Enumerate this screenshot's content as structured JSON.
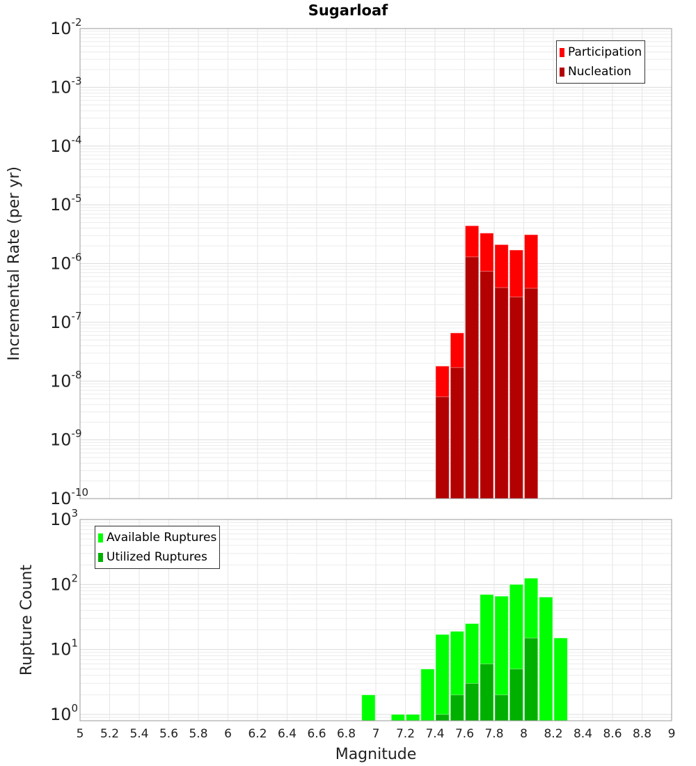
{
  "chart_data": [
    {
      "type": "bar",
      "title": "Sugarloaf",
      "xlabel": "Magnitude",
      "ylabel": "Incremental Rate (per yr)",
      "yscale": "log",
      "ylim": [
        1e-10,
        0.01
      ],
      "xlim": [
        5,
        9
      ],
      "grid": true,
      "legend_position": "top-right",
      "bin_width": 0.1,
      "x": [
        7.45,
        7.55,
        7.65,
        7.75,
        7.85,
        7.95,
        8.05
      ],
      "series": [
        {
          "name": "Participation",
          "color": "#ff0000",
          "values": [
            1.8e-08,
            6.6e-08,
            4.4e-06,
            3.3e-06,
            2.1e-06,
            1.7e-06,
            3.1e-06
          ]
        },
        {
          "name": "Nucleation",
          "color": "#b30000",
          "values": [
            5.4e-09,
            1.7e-08,
            1.3e-06,
            7.4e-07,
            3.9e-07,
            2.7e-07,
            3.8e-07
          ]
        }
      ],
      "ytick_exponents": [
        -10,
        -9,
        -8,
        -7,
        -6,
        -5,
        -4,
        -3,
        -2
      ]
    },
    {
      "type": "bar",
      "xlabel": "Magnitude",
      "ylabel": "Rupture Count",
      "yscale": "log",
      "ylim": [
        0.8,
        1000
      ],
      "xlim": [
        5,
        9
      ],
      "grid": true,
      "legend_position": "top-left",
      "bin_width": 0.1,
      "x": [
        6.95,
        7.15,
        7.25,
        7.35,
        7.45,
        7.55,
        7.65,
        7.75,
        7.85,
        7.95,
        8.05,
        8.15,
        8.25
      ],
      "series": [
        {
          "name": "Available Ruptures",
          "color": "#00ff00",
          "values": [
            2,
            1,
            1,
            5,
            17,
            19,
            25,
            70,
            66,
            100,
            125,
            64,
            15
          ]
        },
        {
          "name": "Utilized Ruptures",
          "color": "#00b000",
          "values": [
            0,
            0,
            0,
            0,
            1,
            2,
            3,
            6,
            2,
            5,
            15,
            0,
            0
          ]
        }
      ],
      "ytick_exponents": [
        0,
        1,
        2,
        3
      ]
    }
  ],
  "xticks": [
    "5",
    "5.2",
    "5.4",
    "5.6",
    "5.8",
    "6",
    "6.2",
    "6.4",
    "6.6",
    "6.8",
    "7",
    "7.2",
    "7.4",
    "7.6",
    "7.8",
    "8",
    "8.2",
    "8.4",
    "8.6",
    "8.8",
    "9"
  ],
  "tick_base": "10"
}
